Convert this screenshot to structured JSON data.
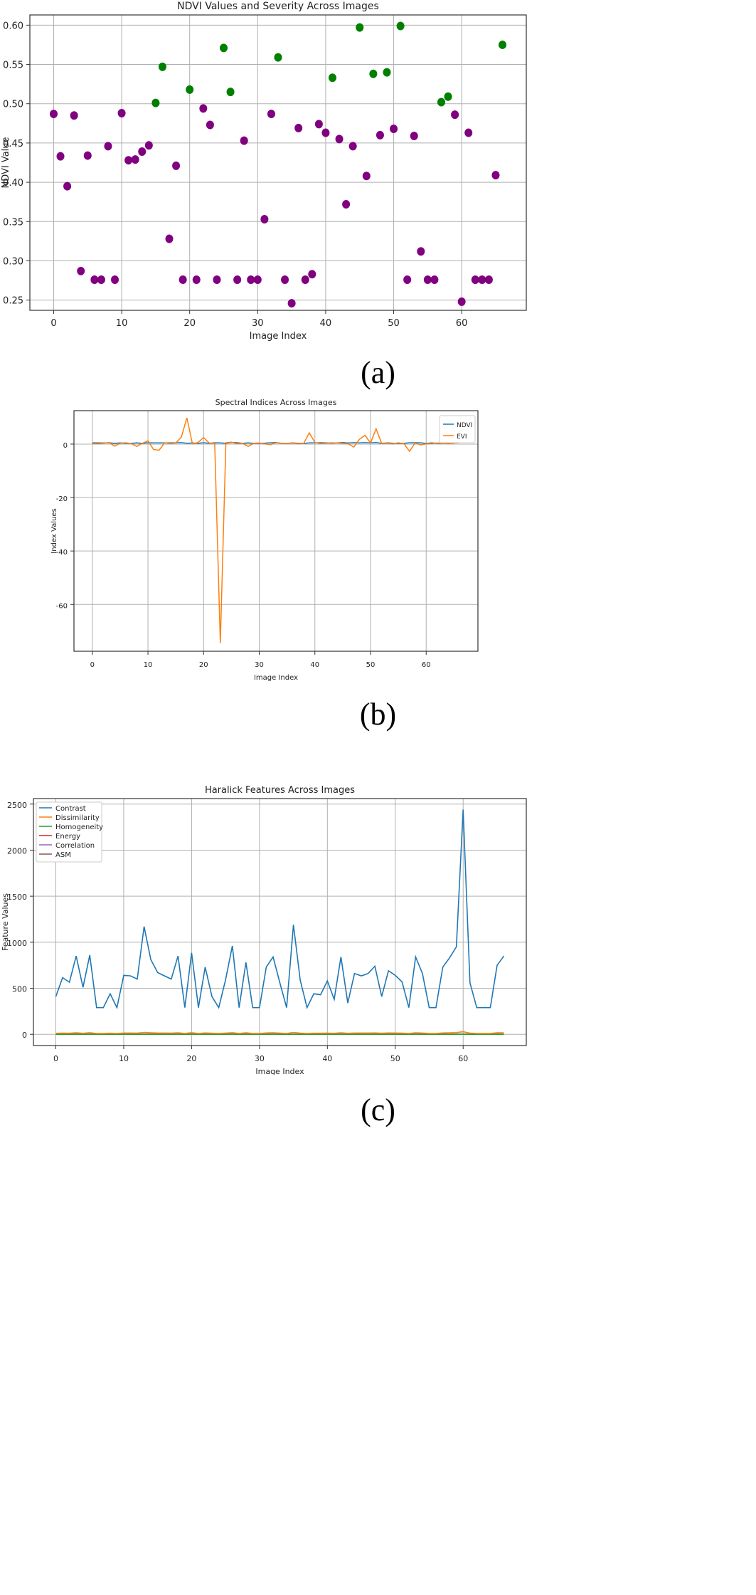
{
  "chart_data": [
    {
      "type": "scatter",
      "title": "NDVI Values and Severity Across Images",
      "xlabel": "Image Index",
      "ylabel": "NDVI Value",
      "xlim": [
        -3.5,
        69.5
      ],
      "ylim": [
        0.237,
        0.613
      ],
      "xticks": [
        0,
        10,
        20,
        30,
        40,
        50,
        60
      ],
      "yticks": [
        0.25,
        0.3,
        0.35,
        0.4,
        0.45,
        0.5,
        0.55,
        0.6
      ],
      "ytick_labels": [
        "0.25",
        "0.30",
        "0.35",
        "0.40",
        "0.45",
        "0.50",
        "0.55",
        "0.60"
      ],
      "grid": true,
      "colors": {
        "low": "#800080",
        "high": "#008000"
      },
      "points": [
        {
          "x": 0,
          "y": 0.487,
          "severity": "low"
        },
        {
          "x": 1,
          "y": 0.433,
          "severity": "low"
        },
        {
          "x": 2,
          "y": 0.395,
          "severity": "low"
        },
        {
          "x": 3,
          "y": 0.485,
          "severity": "low"
        },
        {
          "x": 4,
          "y": 0.287,
          "severity": "low"
        },
        {
          "x": 5,
          "y": 0.434,
          "severity": "low"
        },
        {
          "x": 6,
          "y": 0.276,
          "severity": "low"
        },
        {
          "x": 7,
          "y": 0.276,
          "severity": "low"
        },
        {
          "x": 8,
          "y": 0.446,
          "severity": "low"
        },
        {
          "x": 9,
          "y": 0.276,
          "severity": "low"
        },
        {
          "x": 10,
          "y": 0.488,
          "severity": "low"
        },
        {
          "x": 11,
          "y": 0.428,
          "severity": "low"
        },
        {
          "x": 12,
          "y": 0.429,
          "severity": "low"
        },
        {
          "x": 13,
          "y": 0.439,
          "severity": "low"
        },
        {
          "x": 14,
          "y": 0.447,
          "severity": "low"
        },
        {
          "x": 15,
          "y": 0.501,
          "severity": "high"
        },
        {
          "x": 16,
          "y": 0.547,
          "severity": "high"
        },
        {
          "x": 17,
          "y": 0.328,
          "severity": "low"
        },
        {
          "x": 18,
          "y": 0.421,
          "severity": "low"
        },
        {
          "x": 19,
          "y": 0.276,
          "severity": "low"
        },
        {
          "x": 20,
          "y": 0.518,
          "severity": "high"
        },
        {
          "x": 21,
          "y": 0.276,
          "severity": "low"
        },
        {
          "x": 22,
          "y": 0.494,
          "severity": "low"
        },
        {
          "x": 23,
          "y": 0.473,
          "severity": "low"
        },
        {
          "x": 24,
          "y": 0.276,
          "severity": "low"
        },
        {
          "x": 25,
          "y": 0.571,
          "severity": "high"
        },
        {
          "x": 26,
          "y": 0.515,
          "severity": "high"
        },
        {
          "x": 27,
          "y": 0.276,
          "severity": "low"
        },
        {
          "x": 28,
          "y": 0.453,
          "severity": "low"
        },
        {
          "x": 29,
          "y": 0.276,
          "severity": "low"
        },
        {
          "x": 30,
          "y": 0.276,
          "severity": "low"
        },
        {
          "x": 31,
          "y": 0.353,
          "severity": "low"
        },
        {
          "x": 32,
          "y": 0.487,
          "severity": "low"
        },
        {
          "x": 33,
          "y": 0.559,
          "severity": "high"
        },
        {
          "x": 34,
          "y": 0.276,
          "severity": "low"
        },
        {
          "x": 35,
          "y": 0.246,
          "severity": "low"
        },
        {
          "x": 36,
          "y": 0.469,
          "severity": "low"
        },
        {
          "x": 37,
          "y": 0.276,
          "severity": "low"
        },
        {
          "x": 38,
          "y": 0.283,
          "severity": "low"
        },
        {
          "x": 39,
          "y": 0.474,
          "severity": "low"
        },
        {
          "x": 40,
          "y": 0.463,
          "severity": "low"
        },
        {
          "x": 41,
          "y": 0.533,
          "severity": "high"
        },
        {
          "x": 42,
          "y": 0.455,
          "severity": "low"
        },
        {
          "x": 43,
          "y": 0.372,
          "severity": "low"
        },
        {
          "x": 44,
          "y": 0.446,
          "severity": "low"
        },
        {
          "x": 45,
          "y": 0.597,
          "severity": "high"
        },
        {
          "x": 46,
          "y": 0.408,
          "severity": "low"
        },
        {
          "x": 47,
          "y": 0.538,
          "severity": "high"
        },
        {
          "x": 48,
          "y": 0.46,
          "severity": "low"
        },
        {
          "x": 49,
          "y": 0.54,
          "severity": "high"
        },
        {
          "x": 50,
          "y": 0.468,
          "severity": "low"
        },
        {
          "x": 51,
          "y": 0.599,
          "severity": "high"
        },
        {
          "x": 52,
          "y": 0.276,
          "severity": "low"
        },
        {
          "x": 53,
          "y": 0.459,
          "severity": "low"
        },
        {
          "x": 54,
          "y": 0.312,
          "severity": "low"
        },
        {
          "x": 55,
          "y": 0.276,
          "severity": "low"
        },
        {
          "x": 56,
          "y": 0.276,
          "severity": "low"
        },
        {
          "x": 57,
          "y": 0.502,
          "severity": "high"
        },
        {
          "x": 58,
          "y": 0.509,
          "severity": "high"
        },
        {
          "x": 59,
          "y": 0.486,
          "severity": "low"
        },
        {
          "x": 60,
          "y": 0.248,
          "severity": "low"
        },
        {
          "x": 61,
          "y": 0.463,
          "severity": "low"
        },
        {
          "x": 62,
          "y": 0.276,
          "severity": "low"
        },
        {
          "x": 63,
          "y": 0.276,
          "severity": "low"
        },
        {
          "x": 64,
          "y": 0.276,
          "severity": "low"
        },
        {
          "x": 65,
          "y": 0.409,
          "severity": "low"
        },
        {
          "x": 66,
          "y": 0.575,
          "severity": "high"
        }
      ]
    },
    {
      "type": "line",
      "title": "Spectral Indices Across Images",
      "xlabel": "Image Index",
      "ylabel": "Index Values",
      "xlim": [
        -3.3,
        69.3
      ],
      "ylim": [
        -77.5,
        12.5
      ],
      "xticks": [
        0,
        10,
        20,
        30,
        40,
        50,
        60
      ],
      "yticks": [
        0,
        -20,
        -40,
        -60
      ],
      "grid": true,
      "legend": "top-right",
      "x": [
        0,
        1,
        2,
        3,
        4,
        5,
        6,
        7,
        8,
        9,
        10,
        11,
        12,
        13,
        14,
        15,
        16,
        17,
        18,
        19,
        20,
        21,
        22,
        23,
        24,
        25,
        26,
        27,
        28,
        29,
        30,
        31,
        32,
        33,
        34,
        35,
        36,
        37,
        38,
        39,
        40,
        41,
        42,
        43,
        44,
        45,
        46,
        47,
        48,
        49,
        50,
        51,
        52,
        53,
        54,
        55,
        56,
        57,
        58,
        59,
        60,
        61,
        62,
        63,
        64,
        65,
        66
      ],
      "series": [
        {
          "name": "NDVI",
          "color": "#1f77b4",
          "values": [
            0.49,
            0.43,
            0.4,
            0.49,
            0.29,
            0.43,
            0.28,
            0.28,
            0.45,
            0.28,
            0.49,
            0.43,
            0.43,
            0.44,
            0.45,
            0.5,
            0.55,
            0.33,
            0.42,
            0.28,
            0.52,
            0.28,
            0.49,
            0.47,
            0.28,
            0.57,
            0.52,
            0.28,
            0.45,
            0.28,
            0.28,
            0.35,
            0.49,
            0.56,
            0.28,
            0.25,
            0.47,
            0.28,
            0.28,
            0.47,
            0.46,
            0.53,
            0.46,
            0.37,
            0.45,
            0.6,
            0.41,
            0.54,
            0.46,
            0.54,
            0.47,
            0.6,
            0.28,
            0.46,
            0.31,
            0.28,
            0.28,
            0.5,
            0.51,
            0.49,
            0.25,
            0.46,
            0.28,
            0.28,
            0.28,
            0.41,
            0.58
          ]
        },
        {
          "name": "EVI",
          "color": "#ff7f0e",
          "values": [
            0.2,
            0.1,
            0.3,
            0.6,
            -0.8,
            0.3,
            0.5,
            0.2,
            -0.9,
            0.3,
            1.2,
            -2,
            -2.3,
            0.5,
            0.2,
            0.4,
            2.6,
            9.8,
            0.1,
            0.6,
            2.5,
            0.4,
            0.2,
            -74.5,
            0.5,
            0.7,
            0.1,
            0.3,
            -0.9,
            0.3,
            0.4,
            0.1,
            -0.2,
            0.5,
            0.3,
            0.2,
            0.4,
            0.1,
            0.3,
            4.2,
            0.6,
            0.2,
            0.3,
            0.5,
            0.4,
            0.3,
            0.1,
            -1.1,
            1.8,
            3.3,
            0.4,
            5.7,
            0.2,
            0.3,
            0.1,
            0.5,
            0.2,
            -2.7,
            0.4,
            -0.3,
            0.1,
            0.2,
            0.4,
            0.3,
            0.1,
            0.4,
            0.6
          ]
        }
      ]
    },
    {
      "type": "line",
      "title": "Haralick Features Across Images",
      "xlabel": "Image Index",
      "ylabel": "Feature Values",
      "xlim": [
        -3.3,
        69.3
      ],
      "ylim": [
        -122,
        2560
      ],
      "xticks": [
        0,
        10,
        20,
        30,
        40,
        50,
        60
      ],
      "yticks": [
        0,
        500,
        1000,
        1500,
        2000,
        2500
      ],
      "grid": true,
      "legend": "top-left",
      "x": [
        0,
        1,
        2,
        3,
        4,
        5,
        6,
        7,
        8,
        9,
        10,
        11,
        12,
        13,
        14,
        15,
        16,
        17,
        18,
        19,
        20,
        21,
        22,
        23,
        24,
        25,
        26,
        27,
        28,
        29,
        30,
        31,
        32,
        33,
        34,
        35,
        36,
        37,
        38,
        39,
        40,
        41,
        42,
        43,
        44,
        45,
        46,
        47,
        48,
        49,
        50,
        51,
        52,
        53,
        54,
        55,
        56,
        57,
        58,
        59,
        60,
        61,
        62,
        63,
        64,
        65,
        66
      ],
      "series": [
        {
          "name": "Contrast",
          "color": "#1f77b4",
          "values": [
            410,
            615,
            565,
            850,
            510,
            860,
            290,
            290,
            440,
            290,
            640,
            635,
            600,
            1170,
            810,
            670,
            635,
            600,
            850,
            290,
            885,
            290,
            730,
            410,
            290,
            590,
            960,
            290,
            780,
            290,
            290,
            730,
            840,
            560,
            290,
            1190,
            590,
            290,
            440,
            430,
            580,
            380,
            840,
            340,
            660,
            635,
            660,
            740,
            410,
            690,
            640,
            570,
            290,
            840,
            660,
            290,
            290,
            730,
            830,
            950,
            2440,
            560,
            290,
            290,
            290,
            750,
            850
          ]
        },
        {
          "name": "Dissimilarity",
          "color": "#ff7f0e",
          "values": [
            11,
            13,
            12,
            16,
            11,
            18,
            9,
            9,
            12,
            9,
            14,
            14,
            13,
            20,
            16,
            14,
            14,
            13,
            17,
            9,
            18,
            9,
            15,
            12,
            9,
            13,
            18,
            9,
            16,
            9,
            9,
            15,
            17,
            13,
            9,
            20,
            13,
            9,
            12,
            12,
            13,
            11,
            17,
            11,
            14,
            14,
            14,
            15,
            12,
            15,
            14,
            13,
            9,
            17,
            14,
            9,
            9,
            15,
            17,
            19,
            28,
            13,
            9,
            9,
            9,
            16,
            17
          ]
        },
        {
          "name": "Homogeneity",
          "color": "#2ca02c",
          "values": [
            0.2,
            0.18,
            0.19,
            0.16,
            0.2,
            0.15,
            0.25,
            0.25,
            0.2,
            0.25,
            0.17,
            0.17,
            0.18,
            0.13,
            0.16,
            0.17,
            0.17,
            0.18,
            0.16,
            0.25,
            0.15,
            0.25,
            0.17,
            0.2,
            0.25,
            0.18,
            0.15,
            0.25,
            0.16,
            0.25,
            0.25,
            0.17,
            0.16,
            0.18,
            0.25,
            0.13,
            0.18,
            0.25,
            0.2,
            0.2,
            0.18,
            0.2,
            0.16,
            0.21,
            0.17,
            0.17,
            0.17,
            0.17,
            0.2,
            0.17,
            0.17,
            0.18,
            0.25,
            0.16,
            0.17,
            0.25,
            0.25,
            0.17,
            0.16,
            0.15,
            0.1,
            0.18,
            0.25,
            0.25,
            0.25,
            0.16,
            0.16
          ]
        },
        {
          "name": "Energy",
          "color": "#d62728",
          "values": [
            0.05,
            0.05,
            0.05,
            0.04,
            0.05,
            0.04,
            0.07,
            0.07,
            0.05,
            0.07,
            0.04,
            0.04,
            0.05,
            0.03,
            0.04,
            0.04,
            0.04,
            0.05,
            0.04,
            0.07,
            0.04,
            0.07,
            0.04,
            0.05,
            0.07,
            0.05,
            0.04,
            0.07,
            0.04,
            0.07,
            0.07,
            0.04,
            0.04,
            0.05,
            0.07,
            0.03,
            0.05,
            0.07,
            0.05,
            0.05,
            0.05,
            0.05,
            0.04,
            0.05,
            0.04,
            0.04,
            0.04,
            0.04,
            0.05,
            0.04,
            0.04,
            0.05,
            0.07,
            0.04,
            0.04,
            0.07,
            0.07,
            0.04,
            0.04,
            0.04,
            0.02,
            0.05,
            0.07,
            0.07,
            0.07,
            0.04,
            0.04
          ]
        },
        {
          "name": "Correlation",
          "color": "#9467bd",
          "values": [
            0.9,
            0.88,
            0.89,
            0.85,
            0.9,
            0.85,
            0.93,
            0.93,
            0.9,
            0.93,
            0.87,
            0.87,
            0.88,
            0.8,
            0.86,
            0.87,
            0.87,
            0.88,
            0.85,
            0.93,
            0.84,
            0.93,
            0.86,
            0.9,
            0.93,
            0.88,
            0.83,
            0.93,
            0.85,
            0.93,
            0.93,
            0.86,
            0.85,
            0.88,
            0.93,
            0.8,
            0.88,
            0.93,
            0.9,
            0.9,
            0.88,
            0.9,
            0.85,
            0.91,
            0.87,
            0.87,
            0.87,
            0.86,
            0.9,
            0.87,
            0.87,
            0.88,
            0.93,
            0.85,
            0.87,
            0.93,
            0.93,
            0.86,
            0.85,
            0.83,
            0.7,
            0.88,
            0.93,
            0.93,
            0.93,
            0.86,
            0.85
          ]
        },
        {
          "name": "ASM",
          "color": "#8c564b",
          "values": [
            0.003,
            0.002,
            0.002,
            0.002,
            0.003,
            0.002,
            0.005,
            0.005,
            0.003,
            0.005,
            0.002,
            0.002,
            0.002,
            0.001,
            0.002,
            0.002,
            0.002,
            0.002,
            0.002,
            0.005,
            0.002,
            0.005,
            0.002,
            0.003,
            0.005,
            0.002,
            0.002,
            0.005,
            0.002,
            0.005,
            0.005,
            0.002,
            0.002,
            0.002,
            0.005,
            0.001,
            0.002,
            0.005,
            0.003,
            0.003,
            0.002,
            0.003,
            0.002,
            0.003,
            0.002,
            0.002,
            0.002,
            0.002,
            0.003,
            0.002,
            0.002,
            0.002,
            0.005,
            0.002,
            0.002,
            0.005,
            0.005,
            0.002,
            0.002,
            0.002,
            0.0005,
            0.002,
            0.005,
            0.005,
            0.005,
            0.002,
            0.002
          ]
        }
      ]
    }
  ],
  "captions": [
    "(a)",
    "(b)",
    "(c)"
  ]
}
